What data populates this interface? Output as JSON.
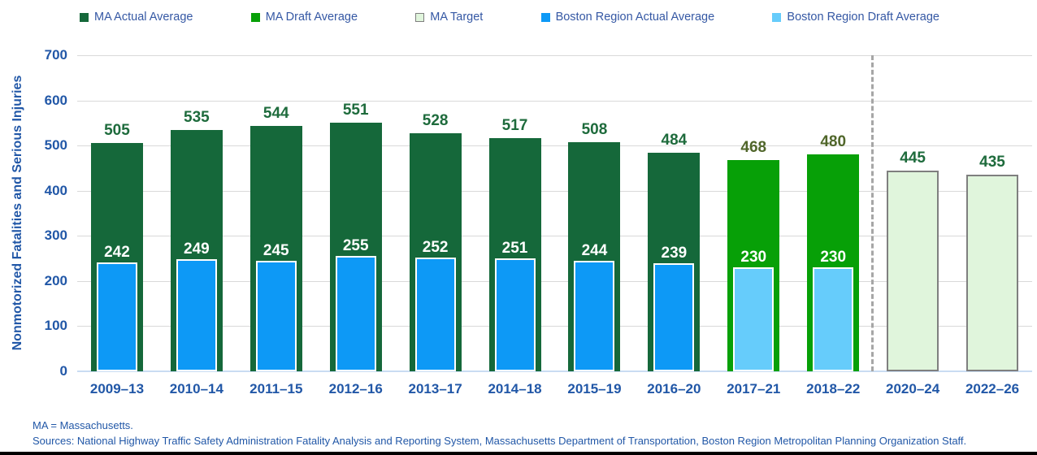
{
  "chart_data": {
    "type": "bar",
    "title": "",
    "categories": [
      "2009–13",
      "2010–14",
      "2011–15",
      "2012–16",
      "2013–17",
      "2014–18",
      "2015–19",
      "2016–20",
      "2017–21",
      "2018–22",
      "2020–24",
      "2022–26"
    ],
    "series": [
      {
        "name": "MA Actual Average",
        "role": "ma",
        "bar_type": "actual",
        "color": "#15683A",
        "values": [
          505,
          535,
          544,
          551,
          528,
          517,
          508,
          484,
          null,
          null,
          null,
          null
        ]
      },
      {
        "name": "MA Draft Average",
        "role": "ma",
        "bar_type": "draft",
        "color": "#07A007",
        "values": [
          null,
          null,
          null,
          null,
          null,
          null,
          null,
          null,
          468,
          480,
          null,
          null
        ]
      },
      {
        "name": "MA Target",
        "role": "ma",
        "bar_type": "target",
        "color": "#E0F5DC",
        "border": "#7F7F7F",
        "values": [
          null,
          null,
          null,
          null,
          null,
          null,
          null,
          null,
          null,
          null,
          445,
          435
        ]
      },
      {
        "name": "Boston Region Actual Average",
        "role": "boston",
        "bar_type": "actual",
        "color": "#0D99F6",
        "values": [
          242,
          249,
          245,
          255,
          252,
          251,
          244,
          239,
          null,
          null,
          null,
          null
        ]
      },
      {
        "name": "Boston Region Draft Average",
        "role": "boston",
        "bar_type": "draft",
        "color": "#66CCFB",
        "values": [
          null,
          null,
          null,
          null,
          null,
          null,
          null,
          null,
          230,
          230,
          null,
          null
        ]
      }
    ],
    "xlabel": "",
    "ylabel": "Nonmotorized Fatalities and Serious Injuries",
    "ylim": [
      0,
      700
    ],
    "yticks": [
      0,
      100,
      200,
      300,
      400,
      500,
      600,
      700
    ],
    "grid": true,
    "legend_position": "top",
    "separator_after_category": "2018–22"
  },
  "colors": {
    "label_actual": "#1E6B3C",
    "label_draft": "#50662A",
    "label_target": "#1E6B3C",
    "inner_label": "#FFFFFF",
    "axis_text": "#2157A7",
    "legend_text": "#3558A4",
    "gridline": "#D9D9D9",
    "axis_line": "#C9DCF2",
    "separator": "#A6A6A6"
  },
  "footnotes": [
    "MA = Massachusetts.",
    "Sources: National Highway Traffic Safety Administration Fatality Analysis and Reporting System, Massachusetts Department of Transportation, Boston Region Metropolitan Planning Organization Staff."
  ]
}
